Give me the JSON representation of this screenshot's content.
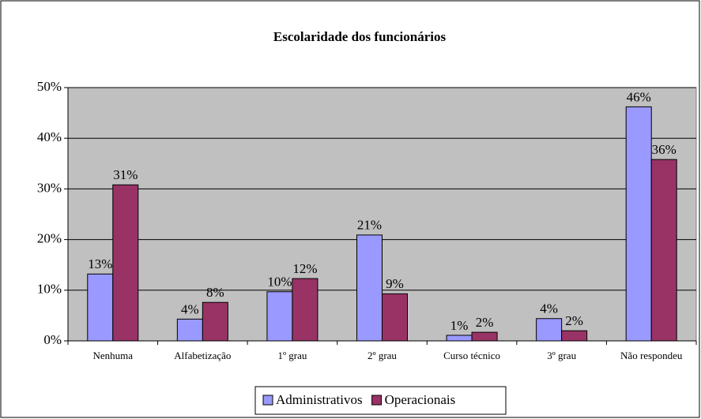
{
  "chart_data": {
    "type": "bar",
    "title": "Escolaridade dos funcionários",
    "categories": [
      "Nenhuma",
      "Alfabetização",
      "1º grau",
      "2º grau",
      "Curso técnico",
      "3º grau",
      "Não respondeu"
    ],
    "series": [
      {
        "name": "Administrativos",
        "color": "#9999ff",
        "values": [
          13.2,
          4.3,
          9.7,
          20.9,
          1.1,
          4.4,
          46.2
        ],
        "value_labels": [
          "13%",
          "4%",
          "10%",
          "21%",
          "1%",
          "4%",
          "46%"
        ]
      },
      {
        "name": "Operacionais",
        "color": "#993366",
        "values": [
          30.8,
          7.6,
          12.3,
          9.3,
          1.7,
          2.0,
          35.8
        ],
        "value_labels": [
          "31%",
          "8%",
          "12%",
          "9%",
          "2%",
          "2%",
          "36%"
        ]
      }
    ],
    "ylim": [
      0,
      50
    ],
    "yticks": [
      {
        "value": 0,
        "label": "0%"
      },
      {
        "value": 10,
        "label": "10%"
      },
      {
        "value": 20,
        "label": "20%"
      },
      {
        "value": 30,
        "label": "30%"
      },
      {
        "value": 40,
        "label": "40%"
      },
      {
        "value": 50,
        "label": "50%"
      }
    ],
    "grid": true,
    "legend": "bottom"
  }
}
